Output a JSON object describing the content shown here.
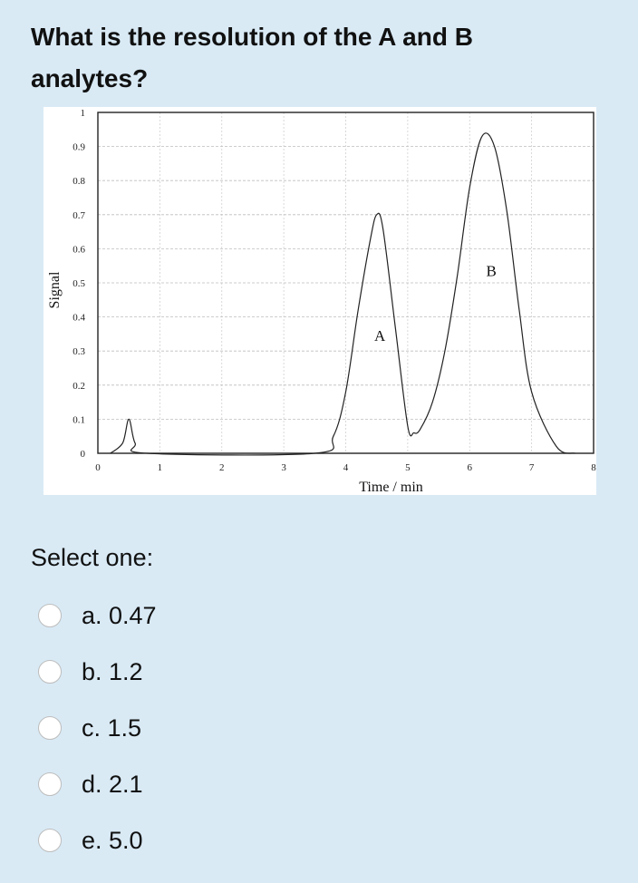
{
  "question": {
    "text": "What is the resolution of the A and B analytes?"
  },
  "prompt": "Select one:",
  "options": [
    {
      "label": "a. 0.47"
    },
    {
      "label": "b. 1.2"
    },
    {
      "label": "c. 1.5"
    },
    {
      "label": "d. 2.1"
    },
    {
      "label": "e. 5.0"
    }
  ],
  "chart_data": {
    "type": "line",
    "title": "",
    "xlabel": "Time / min",
    "ylabel": "Signal",
    "xlim": [
      0,
      8
    ],
    "ylim": [
      0,
      1
    ],
    "x_ticks": [
      "0",
      "1",
      "2",
      "3",
      "4",
      "5",
      "6",
      "7",
      "8"
    ],
    "y_ticks": [
      "0",
      "0.1",
      "0.2",
      "0.3",
      "0.4",
      "0.5",
      "0.6",
      "0.7",
      "0.8",
      "0.9",
      "1"
    ],
    "grid": true,
    "series": [
      {
        "x": [
          0.2,
          0.4,
          0.5,
          0.6,
          0.8,
          3.5,
          3.8,
          4.0,
          4.2,
          4.4,
          4.5,
          4.6,
          4.8,
          5.0,
          5.1,
          5.2,
          5.4,
          5.6,
          5.8,
          6.0,
          6.2,
          6.4,
          6.6,
          6.8,
          7.0,
          7.4,
          7.7
        ],
        "y": [
          0.0,
          0.03,
          0.1,
          0.03,
          0.0,
          0.0,
          0.05,
          0.18,
          0.42,
          0.63,
          0.7,
          0.66,
          0.37,
          0.08,
          0.06,
          0.07,
          0.15,
          0.3,
          0.52,
          0.78,
          0.93,
          0.9,
          0.71,
          0.42,
          0.18,
          0.02,
          0.0
        ]
      }
    ],
    "annotations": [
      {
        "text": "A",
        "x": 4.55,
        "y": 0.33
      },
      {
        "text": "B",
        "x": 6.35,
        "y": 0.52
      }
    ]
  }
}
